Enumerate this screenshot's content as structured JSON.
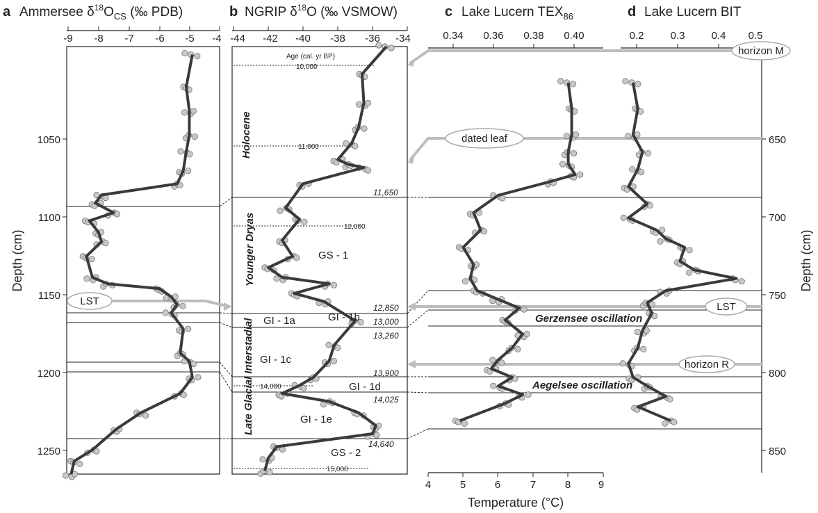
{
  "panels": {
    "a": {
      "letter": "a",
      "title": "Ammersee δ",
      "sup": "18",
      "post": "O",
      "sub": "CS",
      "unit": " (‰ PDB)"
    },
    "b": {
      "letter": "b",
      "title": "NGRIP δ",
      "sup": "18",
      "post": "O (‰ VSMOW)"
    },
    "c": {
      "letter": "c",
      "title": "Lake Lucern TEX",
      "sub": "86"
    },
    "d": {
      "letter": "d",
      "title": "Lake Lucern BIT"
    }
  },
  "axes": {
    "left_label": "Depth (cm)",
    "right_label": "Depth (cm)",
    "bottom_label": "Temperature (°C)",
    "a_ticks": [
      "-9",
      "-8",
      "-7",
      "-6",
      "-5",
      "-4"
    ],
    "b_ticks": [
      "-44",
      "-42",
      "-40",
      "-38",
      "-36",
      "-34"
    ],
    "tex_ticks": [
      "0.34",
      "0.36",
      "0.38",
      "0.40"
    ],
    "bit_ticks": [
      "0.2",
      "0.3",
      "0.4",
      "0.5"
    ],
    "temp_ticks": [
      "4",
      "5",
      "6",
      "7",
      "8",
      "9"
    ],
    "left_depth_ticks": [
      "1050",
      "1100",
      "1150",
      "1200",
      "1250"
    ],
    "right_depth_ticks": [
      "650",
      "700",
      "750",
      "800",
      "850"
    ]
  },
  "labels": {
    "age_header": "Age (cal. yr BP)",
    "age_10000": "10,000",
    "age_11000": "11,000",
    "age_12000": "12,000",
    "age_14000": "14,000",
    "age_15000": "15,000",
    "b_11650": "11,650",
    "b_12850": "12,850",
    "b_13000": "13,000",
    "b_13260": "13,260",
    "b_13900": "13,900",
    "b_14025": "14,025",
    "b_14640": "14,640",
    "holocene": "Holocene",
    "younger_dryas": "Younger Dryas",
    "late_glacial": "Late Glacial Interstadial",
    "gs1": "GS - 1",
    "gs2": "GS - 2",
    "gi1a": "GI - 1a",
    "gi1b": "GI - 1b",
    "gi1c": "GI - 1c",
    "gi1d": "GI - 1d",
    "gi1e": "GI - 1e",
    "gerzensee": "Gerzensee oscillation",
    "aegelsee": "Aegelsee oscillation",
    "horizon_m": "horizon M",
    "dated_leaf": "dated leaf",
    "lst_left": "LST",
    "lst_right": "LST",
    "horizon_r": "horizon R"
  },
  "colors": {
    "curve": "#3a3a3a",
    "marker_fill": "#c8c8c8",
    "marker_edge": "#777777",
    "horizon_line": "#b9b9b9"
  },
  "chart_data": [
    {
      "type": "scatter",
      "title": "Ammersee δ18O CS (‰ PDB)",
      "ylabel": "Depth (cm)",
      "xlim": [
        -9,
        -4
      ],
      "ylim": [
        1270,
        1005
      ],
      "series": [
        {
          "x": [
            -4.9,
            -5.1,
            -5.0,
            -5.0,
            -5.1,
            -5.2,
            -5.4,
            -7.9,
            -8.1,
            -7.5,
            -8.3,
            -8.0,
            -7.9,
            -8.4,
            -8.2,
            -7.7,
            -6.0,
            -5.6,
            -5.4,
            -5.6,
            -5.2,
            -5.3,
            -5.0,
            -4.9,
            -5.3,
            -6.6,
            -7.4,
            -8.2,
            -8.8,
            -8.9
          ],
          "y": [
            1010,
            1030,
            1045,
            1060,
            1070,
            1082,
            1090,
            1097,
            1102,
            1108,
            1113,
            1120,
            1126,
            1135,
            1148,
            1152,
            1155,
            1160,
            1165,
            1170,
            1180,
            1195,
            1200,
            1210,
            1220,
            1232,
            1242,
            1255,
            1262,
            1270
          ]
        }
      ]
    },
    {
      "type": "line",
      "title": "NGRIP δ18O (‰ VSMOW)",
      "xlim": [
        -44,
        -34
      ],
      "series": [
        {
          "x": [
            -35.2,
            -36.6,
            -36.5,
            -36.8,
            -37.2,
            -38.0,
            -37.4,
            -36.5,
            -40.0,
            -41.0,
            -40.2,
            -41.2,
            -40.6,
            -42.0,
            -41.2,
            -38.5,
            -40.5,
            -38.8,
            -37.0,
            -38.2,
            -38.5,
            -39.4,
            -40.2,
            -41.2,
            -38.5,
            -36.8,
            -35.8,
            -36.0,
            -41.5,
            -42.0,
            -42.2
          ],
          "y": [
            1005,
            1022,
            1040,
            1055,
            1065,
            1075,
            1078,
            1080,
            1090,
            1105,
            1112,
            1125,
            1135,
            1142,
            1148,
            1152,
            1158,
            1163,
            1175,
            1190,
            1200,
            1210,
            1215,
            1220,
            1225,
            1232,
            1240,
            1245,
            1253,
            1260,
            1268
          ]
        }
      ]
    },
    {
      "type": "line",
      "title": "Lake Lucern TEX86",
      "xlabel": "Temperature (°C)",
      "xlim": [
        4,
        9
      ],
      "series": [
        {
          "x": [
            8.0,
            8.1,
            8.1,
            8.0,
            8.0,
            8.2,
            7.5,
            6.0,
            5.3,
            5.5,
            5.0,
            5.3,
            5.2,
            5.4,
            6.0,
            6.6,
            6.2,
            6.7,
            6.4,
            6.0,
            5.8,
            6.4,
            6.0,
            6.7,
            6.2,
            4.9
          ],
          "y": [
            625,
            640,
            655,
            665,
            672,
            678,
            682,
            690,
            700,
            710,
            720,
            730,
            738,
            745,
            750,
            755,
            762,
            770,
            778,
            785,
            790,
            795,
            800,
            805,
            810,
            820
          ]
        }
      ]
    },
    {
      "type": "line",
      "title": "Lake Lucern BIT",
      "ylabel": "Depth (cm)",
      "xlim": [
        0.15,
        0.5
      ],
      "ylim": [
        605,
        850
      ],
      "series": [
        {
          "x": [
            0.23,
            0.24,
            0.23,
            0.25,
            0.24,
            0.22,
            0.26,
            0.22,
            0.28,
            0.3,
            0.34,
            0.33,
            0.36,
            0.45,
            0.3,
            0.26,
            0.27,
            0.25,
            0.24,
            0.22,
            0.23,
            0.26,
            0.3,
            0.24,
            0.31
          ],
          "y": [
            625,
            640,
            655,
            665,
            675,
            685,
            695,
            703,
            710,
            715,
            720,
            728,
            733,
            738,
            745,
            752,
            758,
            768,
            778,
            787,
            795,
            800,
            806,
            812,
            820
          ]
        }
      ]
    }
  ]
}
